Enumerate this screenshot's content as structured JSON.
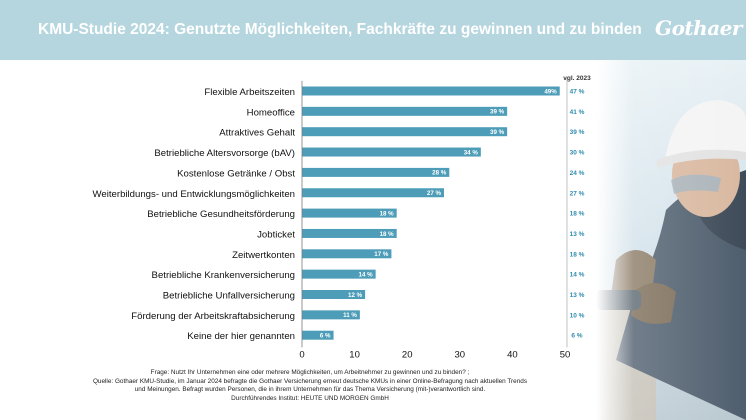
{
  "header": {
    "title": "KMU-Studie 2024: Genutzte Möglichkeiten, Fachkräfte zu gewinnen und zu binden",
    "logo": "Gothaer"
  },
  "chart_data": {
    "type": "bar",
    "orientation": "horizontal",
    "categories": [
      "Flexible Arbeitszeiten",
      "Homeoffice",
      "Attraktives Gehalt",
      "Betriebliche Altersvorsorge (bAV)",
      "Kostenlose Getränke / Obst",
      "Weiterbildungs- und Entwicklungsmöglichkeiten",
      "Betriebliche Gesundheitsförderung",
      "Jobticket",
      "Zeitwertkonten",
      "Betriebliche Krankenversicherung",
      "Betriebliche Unfallversicherung",
      "Förderung der Arbeitskraftabsicherung",
      "Keine der hier genannten"
    ],
    "values": [
      49,
      39,
      39,
      34,
      28,
      27,
      18,
      18,
      17,
      14,
      12,
      11,
      6
    ],
    "value_labels": [
      "49%",
      "39 %",
      "39 %",
      "34 %",
      "28 %",
      "27 %",
      "18 %",
      "18 %",
      "17 %",
      "14 %",
      "12 %",
      "11 %",
      "6 %"
    ],
    "comparison_header": "vgl. 2023",
    "comparison_labels": [
      "47 %",
      "41 %",
      "39 %",
      "30 %",
      "24 %",
      "27 %",
      "18 %",
      "13 %",
      "18 %",
      "14 %",
      "13 %",
      "10 %",
      "6 %"
    ],
    "xlim": [
      0,
      50
    ],
    "xticks": [
      "0",
      "10",
      "20",
      "30",
      "40",
      "50"
    ],
    "grid": false,
    "bar_color": "#4e9db8",
    "comparison_color": "#2f8cae"
  },
  "footer": {
    "lines": [
      "Frage: Nutzt Ihr Unternehmen eine oder mehrere Möglichkeiten, um Arbeitnehmer zu gewinnen und zu binden? ;",
      "Quelle: Gothaer KMU-Studie, im Januar 2024 befragte die Gothaer Versicherung erneut deutsche KMUs in einer Online-Befragung nach aktuellen Trends",
      "und Meinungen. Befragt wurden Personen, die in ihrem Unternehmen für das Thema Versicherung (mit-)verantwortlich sind.",
      "Durchführendes Institut: HEUTE UND MORGEN GmbH"
    ]
  },
  "photo": {
    "icon": "worker-photo",
    "description_colors": {
      "sky": "#dbe9ef",
      "jacket": "#4f5e6e",
      "helmet": "#f4f4f4",
      "glove": "#8b7a64"
    }
  }
}
